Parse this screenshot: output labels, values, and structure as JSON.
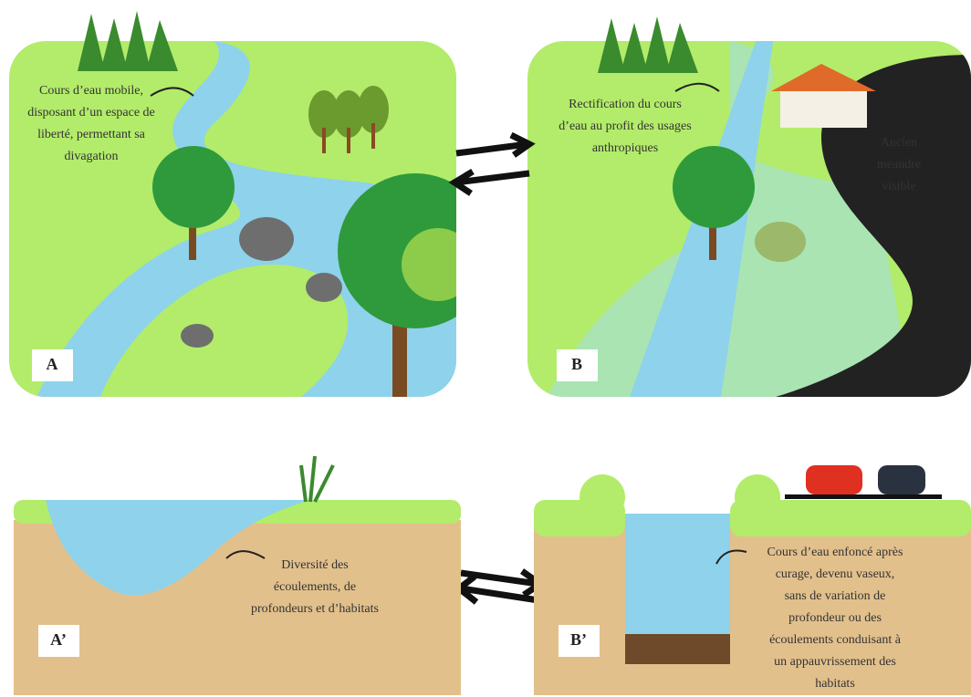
{
  "panels": [
    {
      "label": "A",
      "annotations": [
        {
          "lines": [
            "Cours d’eau mobile,",
            "disposant d’un espace de",
            "liberté, permettant sa",
            "divagation"
          ]
        }
      ]
    },
    {
      "label": "B",
      "annotations": [
        {
          "lines": [
            "Rectification du cours",
            "d’eau au profit des usages",
            "anthropiques"
          ]
        },
        {
          "lines": [
            "Ancien",
            "méandre",
            "visible"
          ]
        }
      ]
    },
    {
      "label": "A’",
      "annotations": [
        {
          "lines": [
            "Diversité des",
            "écoulements, de",
            "profondeurs et d’habitats"
          ]
        }
      ]
    },
    {
      "label": "B’",
      "annotations": [
        {
          "lines": [
            "Cours d’eau enfoncé après",
            "curage, devenu vaseux,",
            "sans de variation de",
            "profondeur ou des",
            "écoulements conduisant à",
            "un appauvrissement des",
            "habitats"
          ]
        }
      ]
    }
  ]
}
